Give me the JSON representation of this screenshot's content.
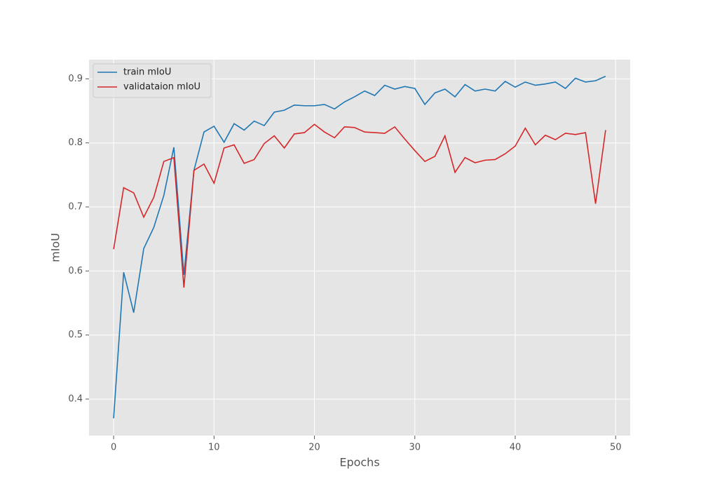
{
  "chart_data": {
    "type": "line",
    "xlabel": "Epochs",
    "ylabel": "mIoU",
    "x": [
      0,
      1,
      2,
      3,
      4,
      5,
      6,
      7,
      8,
      9,
      10,
      11,
      12,
      13,
      14,
      15,
      16,
      17,
      18,
      19,
      20,
      21,
      22,
      23,
      24,
      25,
      26,
      27,
      28,
      29,
      30,
      31,
      32,
      33,
      34,
      35,
      36,
      37,
      38,
      39,
      40,
      41,
      42,
      43,
      44,
      45,
      46,
      47,
      48,
      49
    ],
    "series": [
      {
        "name": "train mIoU",
        "color": "#1f77b4",
        "values": [
          0.37,
          0.598,
          0.535,
          0.635,
          0.668,
          0.718,
          0.793,
          0.594,
          0.757,
          0.817,
          0.826,
          0.801,
          0.83,
          0.82,
          0.834,
          0.827,
          0.848,
          0.851,
          0.859,
          0.858,
          0.858,
          0.86,
          0.853,
          0.864,
          0.872,
          0.881,
          0.874,
          0.89,
          0.884,
          0.888,
          0.885,
          0.86,
          0.878,
          0.884,
          0.872,
          0.891,
          0.881,
          0.884,
          0.881,
          0.896,
          0.887,
          0.895,
          0.89,
          0.892,
          0.895,
          0.885,
          0.901,
          0.895,
          0.897,
          0.904
        ]
      },
      {
        "name": "validataion mIoU",
        "color": "#d62728",
        "values": [
          0.634,
          0.73,
          0.722,
          0.684,
          0.715,
          0.771,
          0.777,
          0.574,
          0.757,
          0.767,
          0.737,
          0.792,
          0.797,
          0.768,
          0.774,
          0.799,
          0.811,
          0.792,
          0.814,
          0.816,
          0.829,
          0.817,
          0.808,
          0.825,
          0.824,
          0.817,
          0.816,
          0.815,
          0.825,
          0.806,
          0.788,
          0.771,
          0.779,
          0.811,
          0.754,
          0.777,
          0.769,
          0.773,
          0.774,
          0.783,
          0.795,
          0.823,
          0.797,
          0.812,
          0.805,
          0.815,
          0.813,
          0.816,
          0.705,
          0.82
        ]
      }
    ],
    "xlim": [
      -2.45,
      51.45
    ],
    "xticks": [
      0,
      10,
      20,
      30,
      40,
      50
    ],
    "ylim": [
      0.343,
      0.93
    ],
    "yticks": [
      0.4,
      0.5,
      0.6,
      0.7,
      0.8,
      0.9
    ],
    "grid": true,
    "legend": "upper-left"
  }
}
